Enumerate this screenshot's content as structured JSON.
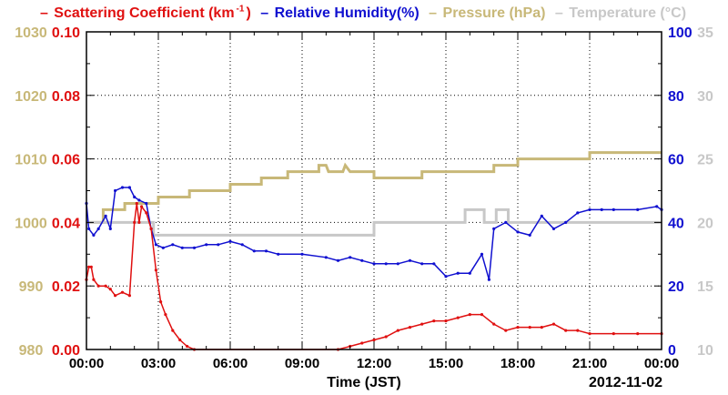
{
  "legend": {
    "scattering": "Scattering Coefficient (km",
    "scattering_sup": "-1",
    "scattering_close": ")",
    "humidity": "Relative Humidity(%)",
    "pressure": "Pressure (hPa)",
    "temperature": "Temperature (°C)"
  },
  "colors": {
    "scattering": "#e01010",
    "humidity": "#1010d0",
    "pressure": "#c8b878",
    "temperature": "#c8c8c8"
  },
  "chart_data": {
    "type": "line",
    "xlabel": "Time (JST)",
    "date_label": "2012-11-02",
    "x_range": [
      0,
      24
    ],
    "x_ticks": [
      "00:00",
      "03:00",
      "06:00",
      "09:00",
      "12:00",
      "15:00",
      "18:00",
      "21:00",
      "00:00"
    ],
    "axes": {
      "scattering": {
        "ylim": [
          0,
          0.1
        ],
        "ticks": [
          "0.00",
          "0.02",
          "0.04",
          "0.06",
          "0.08",
          "0.10"
        ]
      },
      "pressure": {
        "ylim": [
          980,
          1030
        ],
        "ticks": [
          "980",
          "990",
          "1000",
          "1010",
          "1020",
          "1030"
        ]
      },
      "humidity": {
        "ylim": [
          0,
          100
        ],
        "ticks": [
          "0",
          "20",
          "40",
          "60",
          "80",
          "100"
        ]
      },
      "temperature": {
        "ylim": [
          10,
          35
        ],
        "ticks": [
          "10",
          "15",
          "20",
          "25",
          "30",
          "35"
        ]
      }
    },
    "grid": true,
    "series": [
      {
        "name": "Scattering Coefficient (km-1)",
        "axis": "scattering",
        "points": [
          [
            0.0,
            0.022
          ],
          [
            0.1,
            0.026
          ],
          [
            0.2,
            0.026
          ],
          [
            0.3,
            0.022
          ],
          [
            0.5,
            0.02
          ],
          [
            0.8,
            0.02
          ],
          [
            1.0,
            0.019
          ],
          [
            1.2,
            0.017
          ],
          [
            1.5,
            0.018
          ],
          [
            1.8,
            0.017
          ],
          [
            2.0,
            0.04
          ],
          [
            2.1,
            0.046
          ],
          [
            2.2,
            0.04
          ],
          [
            2.3,
            0.045
          ],
          [
            2.5,
            0.043
          ],
          [
            2.7,
            0.038
          ],
          [
            2.9,
            0.025
          ],
          [
            3.1,
            0.015
          ],
          [
            3.3,
            0.011
          ],
          [
            3.6,
            0.006
          ],
          [
            3.9,
            0.003
          ],
          [
            4.2,
            0.001
          ],
          [
            4.5,
            0.0
          ],
          [
            10.5,
            0.0
          ],
          [
            11.0,
            0.001
          ],
          [
            11.5,
            0.002
          ],
          [
            12.0,
            0.003
          ],
          [
            12.5,
            0.004
          ],
          [
            13.0,
            0.006
          ],
          [
            13.5,
            0.007
          ],
          [
            14.0,
            0.008
          ],
          [
            14.5,
            0.009
          ],
          [
            15.0,
            0.009
          ],
          [
            15.5,
            0.01
          ],
          [
            16.0,
            0.011
          ],
          [
            16.5,
            0.011
          ],
          [
            17.0,
            0.008
          ],
          [
            17.5,
            0.006
          ],
          [
            18.0,
            0.007
          ],
          [
            18.5,
            0.007
          ],
          [
            19.0,
            0.007
          ],
          [
            19.5,
            0.008
          ],
          [
            20.0,
            0.006
          ],
          [
            20.5,
            0.006
          ],
          [
            21.0,
            0.005
          ],
          [
            22.0,
            0.005
          ],
          [
            23.0,
            0.005
          ],
          [
            24.0,
            0.005
          ]
        ]
      },
      {
        "name": "Relative Humidity(%)",
        "axis": "humidity",
        "points": [
          [
            0.0,
            46
          ],
          [
            0.1,
            38
          ],
          [
            0.3,
            36
          ],
          [
            0.5,
            38
          ],
          [
            0.8,
            42
          ],
          [
            1.0,
            38
          ],
          [
            1.2,
            50
          ],
          [
            1.5,
            51
          ],
          [
            1.8,
            51
          ],
          [
            2.0,
            48
          ],
          [
            2.2,
            47
          ],
          [
            2.5,
            46
          ],
          [
            2.7,
            38
          ],
          [
            2.9,
            33
          ],
          [
            3.2,
            32
          ],
          [
            3.6,
            33
          ],
          [
            4.0,
            32
          ],
          [
            4.5,
            32
          ],
          [
            5.0,
            33
          ],
          [
            5.5,
            33
          ],
          [
            6.0,
            34
          ],
          [
            6.5,
            33
          ],
          [
            7.0,
            31
          ],
          [
            7.5,
            31
          ],
          [
            8.0,
            30
          ],
          [
            9.0,
            30
          ],
          [
            10.0,
            29
          ],
          [
            10.5,
            28
          ],
          [
            11.0,
            29
          ],
          [
            11.5,
            28
          ],
          [
            12.0,
            27
          ],
          [
            12.5,
            27
          ],
          [
            13.0,
            27
          ],
          [
            13.5,
            28
          ],
          [
            14.0,
            27
          ],
          [
            14.5,
            27
          ],
          [
            15.0,
            23
          ],
          [
            15.5,
            24
          ],
          [
            16.0,
            24
          ],
          [
            16.5,
            30
          ],
          [
            16.8,
            22
          ],
          [
            17.0,
            38
          ],
          [
            17.5,
            40
          ],
          [
            18.0,
            37
          ],
          [
            18.5,
            36
          ],
          [
            19.0,
            42
          ],
          [
            19.5,
            38
          ],
          [
            20.0,
            40
          ],
          [
            20.5,
            43
          ],
          [
            21.0,
            44
          ],
          [
            21.5,
            44
          ],
          [
            22.0,
            44
          ],
          [
            23.0,
            44
          ],
          [
            23.8,
            45
          ],
          [
            24.0,
            44
          ]
        ]
      },
      {
        "name": "Pressure (hPa)",
        "axis": "pressure",
        "points": [
          [
            0.0,
            1000
          ],
          [
            0.7,
            1000
          ],
          [
            0.7,
            1002
          ],
          [
            1.6,
            1002
          ],
          [
            1.6,
            1003
          ],
          [
            3.0,
            1003
          ],
          [
            3.0,
            1004
          ],
          [
            4.3,
            1004
          ],
          [
            4.3,
            1005
          ],
          [
            6.0,
            1005
          ],
          [
            6.0,
            1006
          ],
          [
            7.3,
            1006
          ],
          [
            7.3,
            1007
          ],
          [
            8.4,
            1007
          ],
          [
            8.4,
            1008
          ],
          [
            9.7,
            1008
          ],
          [
            9.7,
            1009
          ],
          [
            10.0,
            1009
          ],
          [
            10.1,
            1008
          ],
          [
            10.7,
            1008
          ],
          [
            10.8,
            1009
          ],
          [
            11.0,
            1008
          ],
          [
            12.0,
            1008
          ],
          [
            12.0,
            1007
          ],
          [
            14.0,
            1007
          ],
          [
            14.0,
            1008
          ],
          [
            17.0,
            1008
          ],
          [
            17.0,
            1009
          ],
          [
            18.0,
            1009
          ],
          [
            18.0,
            1010
          ],
          [
            21.0,
            1010
          ],
          [
            21.0,
            1011
          ],
          [
            24.0,
            1011
          ]
        ]
      },
      {
        "name": "Temperature (°C)",
        "axis": "temperature",
        "points": [
          [
            0.0,
            20
          ],
          [
            2.8,
            20
          ],
          [
            2.8,
            19
          ],
          [
            12.0,
            19
          ],
          [
            12.0,
            20
          ],
          [
            15.8,
            20
          ],
          [
            15.8,
            21
          ],
          [
            16.6,
            21
          ],
          [
            16.6,
            20
          ],
          [
            17.1,
            20
          ],
          [
            17.1,
            21
          ],
          [
            17.6,
            21
          ],
          [
            17.6,
            20
          ],
          [
            24.0,
            20
          ]
        ]
      }
    ]
  }
}
